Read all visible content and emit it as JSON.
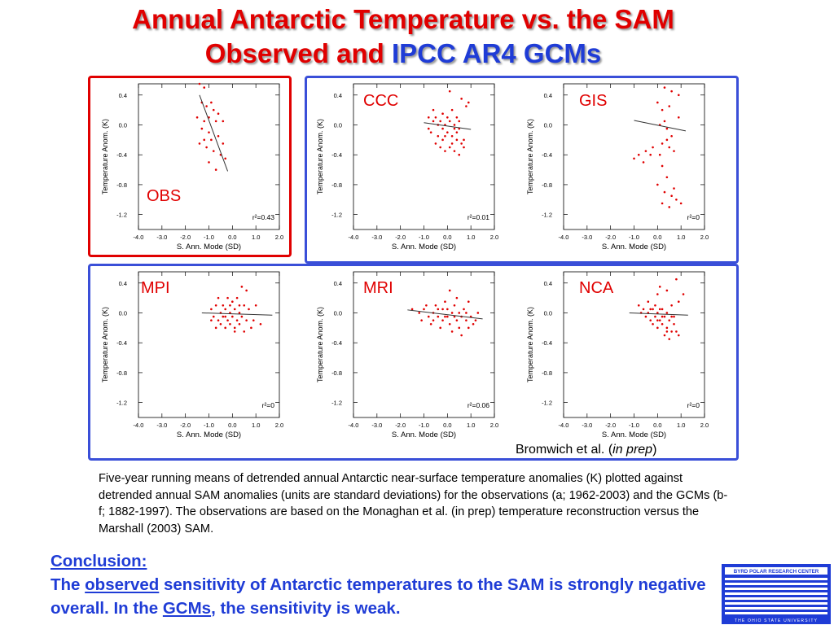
{
  "title": {
    "line1": "Annual Antarctic Temperature vs. the SAM",
    "line2_part1": "Observed and ",
    "line2_part2": "IPCC AR4 GCMs"
  },
  "chart_data": [
    {
      "type": "scatter",
      "panel": "OBS",
      "xlabel": "S. Ann. Mode (SD)",
      "ylabel": "Temperature Anom. (K)",
      "xlim": [
        -4.0,
        2.0
      ],
      "ylim": [
        -1.4,
        0.55
      ],
      "xticks": [
        "-4.0",
        "-3.0",
        "-2.0",
        "-1.0",
        "0.0",
        "1.0",
        "2.0"
      ],
      "yticks": [
        "0.4",
        "0.0",
        "-0.4",
        "-0.8",
        "-1.2"
      ],
      "annotation": "r²=0.43",
      "fit_line": [
        [
          -1.4,
          0.4
        ],
        [
          -0.2,
          -0.62
        ]
      ],
      "points": [
        [
          -1.4,
          0.55
        ],
        [
          -1.2,
          0.5
        ],
        [
          -1.3,
          0.3
        ],
        [
          -1.1,
          0.25
        ],
        [
          -0.9,
          0.3
        ],
        [
          -1.5,
          0.1
        ],
        [
          -1.2,
          0.05
        ],
        [
          -1.0,
          0.1
        ],
        [
          -0.8,
          0.2
        ],
        [
          -1.3,
          -0.05
        ],
        [
          -1.0,
          -0.1
        ],
        [
          -0.7,
          0.05
        ],
        [
          -1.4,
          -0.25
        ],
        [
          -1.1,
          -0.3
        ],
        [
          -0.9,
          -0.2
        ],
        [
          -0.6,
          -0.15
        ],
        [
          -0.4,
          -0.25
        ],
        [
          -0.8,
          -0.35
        ],
        [
          -0.5,
          -0.4
        ],
        [
          -1.0,
          -0.5
        ],
        [
          -0.3,
          -0.45
        ],
        [
          -0.7,
          -0.6
        ],
        [
          -1.2,
          -0.2
        ],
        [
          -0.6,
          0.15
        ],
        [
          -0.4,
          0.05
        ]
      ]
    },
    {
      "type": "scatter",
      "panel": "CCC",
      "xlabel": "S. Ann. Mode (SD)",
      "ylabel": "Temperature Anom. (K)",
      "xlim": [
        -4.0,
        2.0
      ],
      "ylim": [
        -1.4,
        0.55
      ],
      "xticks": [
        "-4.0",
        "-3.0",
        "-2.0",
        "-1.0",
        "0.0",
        "1.0",
        "2.0"
      ],
      "yticks": [
        "0.4",
        "0.0",
        "-0.4",
        "-0.8",
        "-1.2"
      ],
      "annotation": "r²=0.01",
      "fit_line": [
        [
          -1.0,
          0.03
        ],
        [
          1.0,
          -0.06
        ]
      ],
      "points": [
        [
          -0.8,
          0.1
        ],
        [
          -0.6,
          0.05
        ],
        [
          -0.5,
          0.1
        ],
        [
          -0.3,
          0.05
        ],
        [
          -0.1,
          0.0
        ],
        [
          0.1,
          0.05
        ],
        [
          0.3,
          0.0
        ],
        [
          0.5,
          -0.05
        ],
        [
          -0.7,
          -0.1
        ],
        [
          -0.4,
          -0.15
        ],
        [
          -0.2,
          -0.2
        ],
        [
          0.0,
          -0.1
        ],
        [
          0.2,
          -0.15
        ],
        [
          0.4,
          -0.2
        ],
        [
          0.6,
          -0.25
        ],
        [
          -0.5,
          -0.25
        ],
        [
          -0.3,
          -0.3
        ],
        [
          -0.1,
          -0.35
        ],
        [
          0.1,
          -0.3
        ],
        [
          0.3,
          -0.35
        ],
        [
          0.5,
          -0.4
        ],
        [
          0.7,
          -0.2
        ],
        [
          -0.6,
          0.2
        ],
        [
          -0.2,
          0.15
        ],
        [
          0.2,
          0.2
        ],
        [
          0.4,
          0.1
        ],
        [
          0.6,
          0.35
        ],
        [
          0.8,
          0.25
        ],
        [
          0.1,
          0.45
        ],
        [
          -0.4,
          0.0
        ],
        [
          0.0,
          0.1
        ],
        [
          0.3,
          -0.05
        ],
        [
          -0.8,
          -0.05
        ],
        [
          0.5,
          0.05
        ],
        [
          -0.2,
          -0.05
        ],
        [
          0.7,
          -0.3
        ],
        [
          0.2,
          -0.25
        ],
        [
          -0.1,
          -0.15
        ],
        [
          0.9,
          0.3
        ],
        [
          0.4,
          -0.1
        ]
      ]
    },
    {
      "type": "scatter",
      "panel": "GIS",
      "xlabel": "S. Ann. Mode (SD)",
      "ylabel": "Temperature Anom. (K)",
      "xlim": [
        -4.0,
        2.0
      ],
      "ylim": [
        -1.4,
        0.55
      ],
      "xticks": [
        "-4.0",
        "-3.0",
        "-2.0",
        "-1.0",
        "0.0",
        "1.0",
        "2.0"
      ],
      "yticks": [
        "0.4",
        "0.0",
        "-0.4",
        "-0.8",
        "-1.2"
      ],
      "annotation": "r²=0",
      "fit_line": [
        [
          -1.0,
          0.06
        ],
        [
          1.2,
          -0.08
        ]
      ],
      "points": [
        [
          0.3,
          0.5
        ],
        [
          0.6,
          0.45
        ],
        [
          0.9,
          0.4
        ],
        [
          0.2,
          0.2
        ],
        [
          0.5,
          0.25
        ],
        [
          0.1,
          0.0
        ],
        [
          0.3,
          0.05
        ],
        [
          0.4,
          -0.05
        ],
        [
          0.6,
          -0.15
        ],
        [
          0.2,
          -0.25
        ],
        [
          0.5,
          -0.3
        ],
        [
          0.7,
          -0.35
        ],
        [
          -0.8,
          -0.4
        ],
        [
          -0.5,
          -0.35
        ],
        [
          -1.0,
          -0.45
        ],
        [
          -0.6,
          -0.5
        ],
        [
          -0.3,
          -0.4
        ],
        [
          0.1,
          -0.4
        ],
        [
          0.2,
          -0.55
        ],
        [
          0.4,
          -0.7
        ],
        [
          0.0,
          -0.8
        ],
        [
          0.3,
          -0.9
        ],
        [
          0.6,
          -0.95
        ],
        [
          0.8,
          -1.0
        ],
        [
          0.2,
          -1.05
        ],
        [
          0.5,
          -1.1
        ],
        [
          1.0,
          -1.05
        ],
        [
          0.7,
          -0.85
        ],
        [
          0.9,
          0.1
        ],
        [
          0.4,
          -0.2
        ],
        [
          0.0,
          0.3
        ],
        [
          -0.2,
          -0.3
        ]
      ]
    },
    {
      "type": "scatter",
      "panel": "MPI",
      "xlabel": "S. Ann. Mode (SD)",
      "ylabel": "Temperature Anom. (K)",
      "xlim": [
        -4.0,
        2.0
      ],
      "ylim": [
        -1.4,
        0.55
      ],
      "xticks": [
        "-4.0",
        "-3.0",
        "-2.0",
        "-1.0",
        "0.0",
        "1.0",
        "2.0"
      ],
      "yticks": [
        "0.4",
        "0.0",
        "-0.4",
        "-0.8",
        "-1.2"
      ],
      "annotation": "r²=0",
      "fit_line": [
        [
          -1.3,
          0.0
        ],
        [
          1.7,
          -0.03
        ]
      ],
      "points": [
        [
          -0.9,
          0.05
        ],
        [
          -0.7,
          0.1
        ],
        [
          -0.5,
          0.0
        ],
        [
          -0.3,
          0.05
        ],
        [
          -0.1,
          0.1
        ],
        [
          0.1,
          0.05
        ],
        [
          0.3,
          0.0
        ],
        [
          0.5,
          0.1
        ],
        [
          -0.8,
          -0.05
        ],
        [
          -0.6,
          -0.1
        ],
        [
          -0.4,
          -0.05
        ],
        [
          -0.2,
          -0.1
        ],
        [
          0.0,
          -0.05
        ],
        [
          0.2,
          -0.1
        ],
        [
          0.4,
          -0.05
        ],
        [
          0.6,
          -0.1
        ],
        [
          -0.5,
          -0.15
        ],
        [
          -0.3,
          -0.2
        ],
        [
          -0.1,
          -0.15
        ],
        [
          0.1,
          -0.2
        ],
        [
          0.3,
          -0.15
        ],
        [
          0.8,
          -0.2
        ],
        [
          -0.6,
          0.2
        ],
        [
          -0.2,
          0.2
        ],
        [
          0.2,
          0.2
        ],
        [
          0.4,
          0.35
        ],
        [
          0.6,
          0.3
        ],
        [
          -0.7,
          -0.2
        ],
        [
          0.0,
          0.15
        ],
        [
          0.7,
          0.05
        ],
        [
          -0.4,
          0.1
        ],
        [
          0.5,
          -0.25
        ],
        [
          1.0,
          0.1
        ],
        [
          0.9,
          -0.1
        ],
        [
          -0.1,
          0.0
        ],
        [
          0.3,
          0.1
        ],
        [
          -0.9,
          -0.1
        ],
        [
          0.1,
          -0.25
        ],
        [
          1.2,
          -0.15
        ],
        [
          -0.3,
          -0.05
        ]
      ]
    },
    {
      "type": "scatter",
      "panel": "MRI",
      "xlabel": "S. Ann. Mode (SD)",
      "ylabel": "Temperature Anom. (K)",
      "xlim": [
        -4.0,
        2.0
      ],
      "ylim": [
        -1.4,
        0.55
      ],
      "xticks": [
        "-4.0",
        "-3.0",
        "-2.0",
        "-1.0",
        "0.0",
        "1.0",
        "2.0"
      ],
      "yticks": [
        "0.4",
        "0.0",
        "-0.4",
        "-0.8",
        "-1.2"
      ],
      "annotation": "r²=0.06",
      "fit_line": [
        [
          -1.7,
          0.04
        ],
        [
          1.5,
          -0.08
        ]
      ],
      "points": [
        [
          -1.5,
          0.05
        ],
        [
          -1.2,
          0.0
        ],
        [
          -1.0,
          0.05
        ],
        [
          -0.8,
          -0.05
        ],
        [
          -0.6,
          0.0
        ],
        [
          -0.4,
          -0.05
        ],
        [
          -0.2,
          0.05
        ],
        [
          0.0,
          -0.05
        ],
        [
          0.2,
          0.0
        ],
        [
          0.4,
          -0.1
        ],
        [
          0.6,
          -0.05
        ],
        [
          0.8,
          -0.1
        ],
        [
          1.0,
          -0.05
        ],
        [
          1.2,
          -0.1
        ],
        [
          -0.7,
          -0.15
        ],
        [
          -0.3,
          -0.2
        ],
        [
          0.1,
          -0.15
        ],
        [
          0.5,
          -0.2
        ],
        [
          0.9,
          -0.2
        ],
        [
          -0.5,
          0.1
        ],
        [
          -0.1,
          0.15
        ],
        [
          0.3,
          0.1
        ],
        [
          0.7,
          0.05
        ],
        [
          0.1,
          0.3
        ],
        [
          0.4,
          0.2
        ],
        [
          0.9,
          0.15
        ],
        [
          -0.9,
          0.1
        ],
        [
          -0.2,
          -0.1
        ],
        [
          0.6,
          -0.3
        ],
        [
          1.3,
          0.0
        ],
        [
          -1.1,
          -0.1
        ],
        [
          0.0,
          0.05
        ],
        [
          0.3,
          -0.05
        ],
        [
          -0.4,
          0.05
        ],
        [
          0.8,
          0.0
        ],
        [
          0.2,
          -0.25
        ],
        [
          -0.6,
          -0.1
        ],
        [
          1.1,
          -0.15
        ],
        [
          -0.1,
          -0.05
        ],
        [
          0.5,
          0.0
        ]
      ]
    },
    {
      "type": "scatter",
      "panel": "NCA",
      "xlabel": "S. Ann. Mode (SD)",
      "ylabel": "Temperature Anom. (K)",
      "xlim": [
        -4.0,
        2.0
      ],
      "ylim": [
        -1.4,
        0.55
      ],
      "xticks": [
        "-4.0",
        "-3.0",
        "-2.0",
        "-1.0",
        "0.0",
        "1.0",
        "2.0"
      ],
      "yticks": [
        "0.4",
        "0.0",
        "-0.4",
        "-0.8",
        "-1.2"
      ],
      "annotation": "r²=0",
      "fit_line": [
        [
          -1.2,
          0.0
        ],
        [
          1.3,
          -0.03
        ]
      ],
      "points": [
        [
          -0.6,
          0.05
        ],
        [
          -0.4,
          0.0
        ],
        [
          -0.2,
          0.05
        ],
        [
          0.0,
          0.0
        ],
        [
          0.2,
          0.05
        ],
        [
          0.4,
          0.0
        ],
        [
          0.6,
          -0.05
        ],
        [
          -0.5,
          -0.05
        ],
        [
          -0.3,
          -0.1
        ],
        [
          -0.1,
          -0.05
        ],
        [
          0.1,
          -0.1
        ],
        [
          0.3,
          -0.05
        ],
        [
          0.5,
          -0.1
        ],
        [
          0.7,
          -0.15
        ],
        [
          -0.2,
          -0.15
        ],
        [
          0.0,
          -0.2
        ],
        [
          0.2,
          -0.15
        ],
        [
          0.4,
          -0.2
        ],
        [
          0.6,
          -0.25
        ],
        [
          0.3,
          -0.3
        ],
        [
          0.5,
          -0.35
        ],
        [
          0.8,
          -0.25
        ],
        [
          -0.8,
          0.1
        ],
        [
          -0.4,
          0.15
        ],
        [
          0.0,
          0.25
        ],
        [
          0.1,
          0.35
        ],
        [
          0.4,
          0.3
        ],
        [
          0.8,
          0.45
        ],
        [
          1.1,
          0.25
        ],
        [
          0.9,
          0.15
        ],
        [
          -0.7,
          0.0
        ],
        [
          0.2,
          -0.05
        ],
        [
          -0.1,
          0.1
        ],
        [
          0.6,
          0.1
        ],
        [
          0.1,
          0.05
        ],
        [
          0.7,
          -0.05
        ],
        [
          -0.3,
          0.05
        ],
        [
          0.4,
          -0.25
        ],
        [
          0.9,
          -0.3
        ],
        [
          0.0,
          -0.1
        ]
      ]
    }
  ],
  "panel_labels": {
    "obs": "OBS",
    "ccc": "CCC",
    "gis": "GIS",
    "mpi": "MPI",
    "mri": "MRI",
    "nca": "NCA"
  },
  "citation": {
    "text": "Bromwich et al. (",
    "italic": "in prep",
    "close": ")"
  },
  "caption": "Five-year running means of detrended annual Antarctic near-surface temperature anomalies (K) plotted against detrended annual SAM anomalies (units are standard deviations) for the observations (a; 1962-2003) and the GCMs (b-f; 1882-1997).  The observations are based on the Monaghan et al. (in prep) temperature reconstruction versus the Marshall (2003) SAM.",
  "conclusion": {
    "heading": "Conclusion:",
    "p1": "The ",
    "u1": "observed",
    "p2": " sensitivity of Antarctic temperatures to the SAM is strongly negative overall.  In the ",
    "u2": "GCMs",
    "p3": ", the sensitivity is weak."
  },
  "logo": {
    "top_text": "BYRD POLAR RESEARCH CENTER",
    "bottom_text": "THE OHIO STATE UNIVERSITY",
    "color": "#1f3cd6"
  },
  "colors": {
    "title_red": "#e00000",
    "title_blue": "#1f3cd6",
    "frame_red": "#e00000",
    "frame_blue": "#3a4fd8",
    "point_red": "#e00000"
  }
}
